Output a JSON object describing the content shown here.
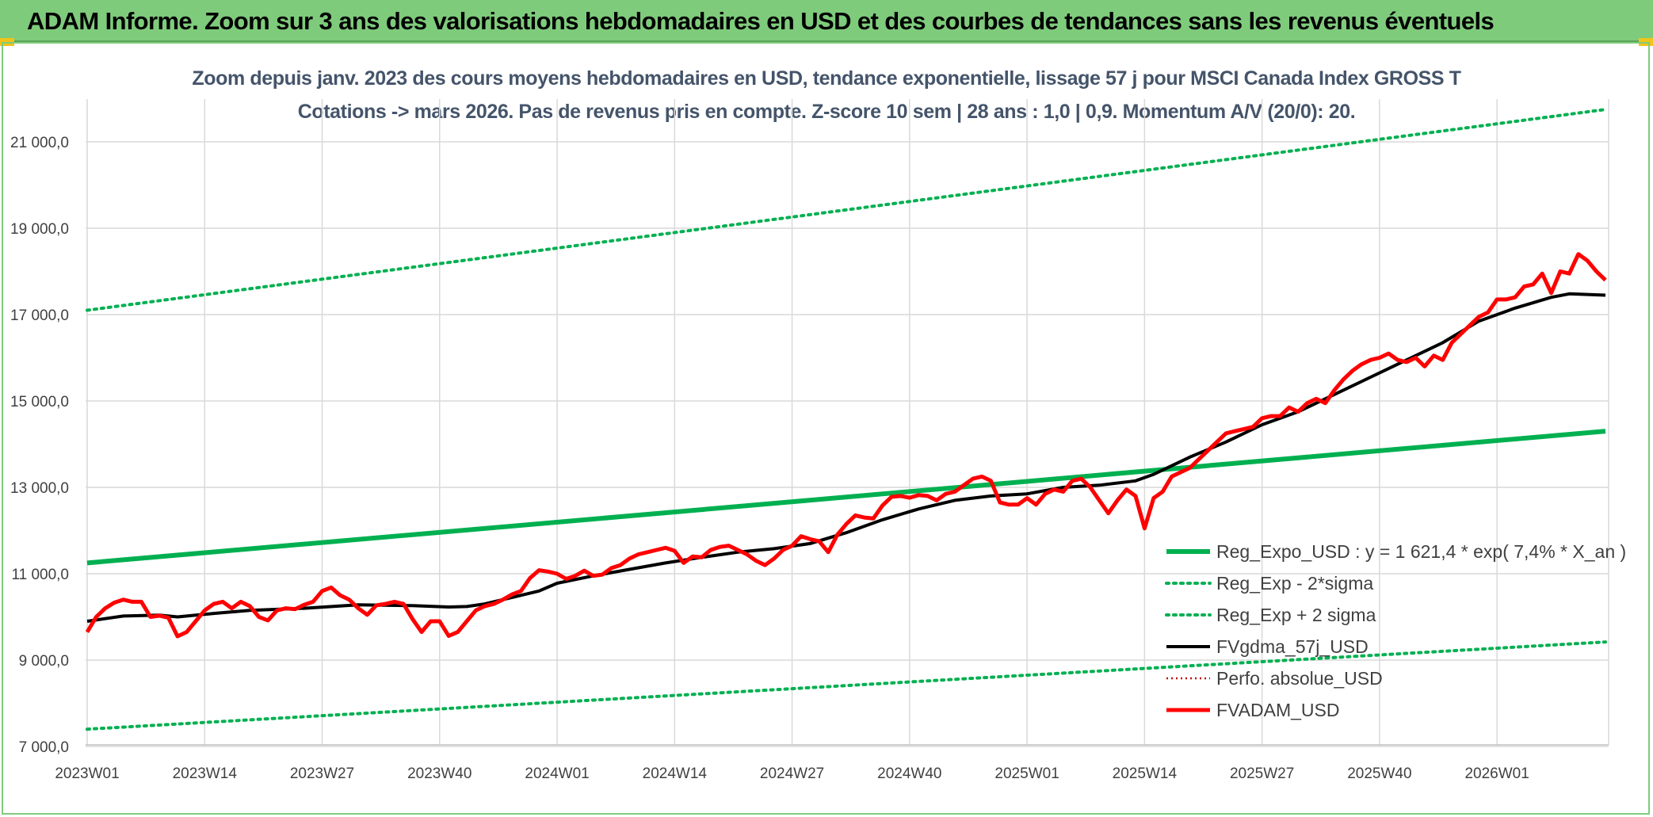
{
  "banner": {
    "title": "ADAM Informe. Zoom sur 3 ans des valorisations hebdomadaires en USD et des courbes de tendances sans les revenus éventuels"
  },
  "colors": {
    "banner_bg": "#7fcb7c",
    "trend_green": "#00b050",
    "fv_gdma_black": "#000000",
    "fvadam_red": "#ff0000",
    "perfo_dotted": "#c00000"
  },
  "chart_data": {
    "type": "line",
    "title_line1": "Zoom depuis janv. 2023 des cours moyens hebdomadaires en USD, tendance exponentielle, lissage 57 j pour MSCI Canada Index GROSS T",
    "title_line2": "Cotations -> mars 2026. Pas de revenus pris en compte. Z-score 10 sem | 28 ans : 1,0 | 0,9. Momentum A/V (20/0): 20.",
    "ylim": [
      7000,
      21500
    ],
    "yticks": [
      "7 000,0",
      "9 000,0",
      "11 000,0",
      "13 000,0",
      "15 000,0",
      "17 000,0",
      "19 000,0",
      "21 000,0"
    ],
    "ytick_values": [
      7000,
      9000,
      11000,
      13000,
      15000,
      17000,
      19000,
      21000
    ],
    "grid": true,
    "x_week_count": 168,
    "xtick_labels": [
      "2023W01",
      "2023W14",
      "2023W27",
      "2023W40",
      "2024W01",
      "2024W14",
      "2024W27",
      "2024W40",
      "2025W01",
      "2025W14",
      "2025W27",
      "2025W40",
      "2026W01"
    ],
    "xtick_week_index": [
      0,
      13,
      26,
      39,
      52,
      65,
      78,
      91,
      104,
      117,
      130,
      143,
      156
    ],
    "legend_position": "right",
    "series": [
      {
        "name": "Reg_Expo_USD : y = 1 621,4 * exp( 7,4% *  X_an )",
        "style": "solid-thick",
        "color": "#00b050",
        "x_week_index": [
          0,
          168
        ],
        "values": [
          11250,
          14300
        ]
      },
      {
        "name": "Reg_Exp - 2*sigma",
        "style": "dotted",
        "color": "#00b050",
        "x_week_index": [
          0,
          168
        ],
        "values": [
          7400,
          9420
        ]
      },
      {
        "name": "Reg_Exp + 2 sigma",
        "style": "dotted",
        "color": "#00b050",
        "x_week_index": [
          0,
          168
        ],
        "values": [
          17100,
          21750
        ]
      },
      {
        "name": "FVgdma_57j_USD",
        "style": "solid",
        "color": "#000000",
        "x_week_index": [
          0,
          4,
          8,
          10,
          14,
          18,
          24,
          30,
          36,
          40,
          42,
          44,
          46,
          50,
          52,
          56,
          60,
          64,
          68,
          72,
          76,
          80,
          84,
          88,
          92,
          96,
          100,
          104,
          108,
          112,
          116,
          118,
          122,
          126,
          130,
          134,
          138,
          142,
          146,
          150,
          154,
          158,
          162,
          164,
          168
        ],
        "values": [
          9900,
          10020,
          10040,
          10000,
          10080,
          10150,
          10200,
          10280,
          10260,
          10230,
          10240,
          10300,
          10400,
          10600,
          10780,
          10950,
          11100,
          11250,
          11380,
          11500,
          11580,
          11700,
          11950,
          12250,
          12500,
          12700,
          12800,
          12850,
          13000,
          13050,
          13150,
          13300,
          13700,
          14050,
          14450,
          14750,
          15150,
          15550,
          15950,
          16350,
          16850,
          17150,
          17400,
          17480,
          17450
        ]
      },
      {
        "name": "Perfo. absolue_USD",
        "style": "dotted-legend-only",
        "color": "#c00000",
        "x_week_index": [],
        "values": []
      },
      {
        "name": "FVADAM_USD",
        "style": "solid-thick",
        "color": "#ff0000",
        "x_week_index": [
          0,
          1,
          2,
          3,
          4,
          5,
          6,
          7,
          8,
          9,
          10,
          11,
          12,
          13,
          14,
          15,
          16,
          17,
          18,
          19,
          20,
          21,
          22,
          23,
          24,
          25,
          26,
          27,
          28,
          29,
          30,
          31,
          32,
          33,
          34,
          35,
          36,
          37,
          38,
          39,
          40,
          41,
          42,
          43,
          44,
          45,
          46,
          47,
          48,
          49,
          50,
          51,
          52,
          53,
          54,
          55,
          56,
          57,
          58,
          59,
          60,
          61,
          62,
          63,
          64,
          65,
          66,
          67,
          68,
          69,
          70,
          71,
          72,
          73,
          74,
          75,
          76,
          77,
          78,
          79,
          80,
          81,
          82,
          83,
          84,
          85,
          86,
          87,
          88,
          89,
          90,
          91,
          92,
          93,
          94,
          95,
          96,
          97,
          98,
          99,
          100,
          101,
          102,
          103,
          104,
          105,
          106,
          107,
          108,
          109,
          110,
          111,
          112,
          113,
          114,
          115,
          116,
          117,
          118,
          119,
          120,
          121,
          122,
          123,
          124,
          125,
          126,
          127,
          128,
          129,
          130,
          131,
          132,
          133,
          134,
          135,
          136,
          137,
          138,
          139,
          140,
          141,
          142,
          143,
          144,
          145,
          146,
          147,
          148,
          149,
          150,
          151,
          152,
          153,
          154,
          155,
          156,
          157,
          158,
          159,
          160,
          161,
          162,
          163,
          164,
          165,
          166,
          167,
          168
        ],
        "values": [
          9650,
          10000,
          10200,
          10330,
          10400,
          10350,
          10350,
          10000,
          10030,
          9980,
          9550,
          9650,
          9900,
          10150,
          10300,
          10350,
          10200,
          10350,
          10250,
          10000,
          9920,
          10150,
          10200,
          10180,
          10280,
          10350,
          10600,
          10680,
          10500,
          10400,
          10200,
          10050,
          10270,
          10300,
          10350,
          10300,
          9950,
          9650,
          9900,
          9900,
          9560,
          9650,
          9900,
          10150,
          10250,
          10300,
          10400,
          10520,
          10600,
          10900,
          11080,
          11050,
          11000,
          10880,
          10950,
          11070,
          10950,
          10980,
          11130,
          11200,
          11350,
          11450,
          11500,
          11550,
          11600,
          11530,
          11250,
          11400,
          11380,
          11550,
          11620,
          11650,
          11550,
          11450,
          11300,
          11200,
          11350,
          11550,
          11650,
          11870,
          11800,
          11750,
          11500,
          11900,
          12150,
          12350,
          12300,
          12280,
          12580,
          12780,
          12800,
          12760,
          12820,
          12800,
          12700,
          12850,
          12900,
          13050,
          13200,
          13250,
          13150,
          12650,
          12600,
          12600,
          12750,
          12600,
          12850,
          12950,
          12900,
          13150,
          13200,
          13000,
          12700,
          12400,
          12700,
          12950,
          12800,
          12050,
          12750,
          12900,
          13250,
          13350,
          13450,
          13650,
          13850,
          14050,
          14250,
          14300,
          14350,
          14400,
          14600,
          14650,
          14650,
          14850,
          14750,
          14950,
          15050,
          14950,
          15250,
          15500,
          15700,
          15850,
          15950,
          16000,
          16100,
          15950,
          15900,
          16000,
          15800,
          16050,
          15950,
          16350,
          16550,
          16750,
          16950,
          17050,
          17350,
          17350,
          17400,
          17650,
          17700,
          17950,
          17500,
          18000,
          17950,
          18400,
          18250,
          18000,
          17800,
          17350
        ]
      }
    ]
  }
}
